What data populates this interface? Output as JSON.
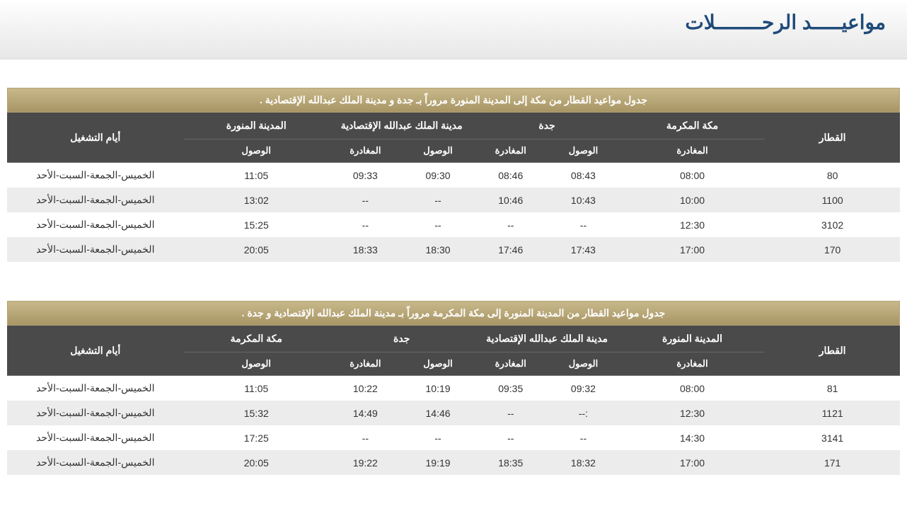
{
  "page": {
    "title": "مواعيـــــد الرحــــــــلات",
    "title_color": "#1f4b7a",
    "header_bg_gradient": [
      "#ffffff",
      "#e8e8e8"
    ]
  },
  "tables": [
    {
      "caption": "جدول مواعيد القطار من مكة إلى المدينة المنورة مروراً بـ جدة و مدينة الملك عبدالله الإقتصادية .",
      "caption_bg": [
        "#c9b98a",
        "#a89565"
      ],
      "header_bg": "#4a4a4a",
      "columns": {
        "train": "القطار",
        "station1": "مكة المكرمة",
        "station2": "جدة",
        "station3": "مدينة الملك عبدالله الإقتصادية",
        "station4": "المدينة المنورة",
        "days": "أيام التشغيل"
      },
      "subcolumns": {
        "depart": "المغادرة",
        "arrive": "الوصول"
      },
      "rows": [
        {
          "train": "80",
          "s1_dep": "08:00",
          "s2_arr": "08:43",
          "s2_dep": "08:46",
          "s3_arr": "09:30",
          "s3_dep": "09:33",
          "s4_arr": "11:05",
          "days": "الخميس-الجمعة-السبت-الأحد"
        },
        {
          "train": "1100",
          "s1_dep": "10:00",
          "s2_arr": "10:43",
          "s2_dep": "10:46",
          "s3_arr": "--",
          "s3_dep": "--",
          "s4_arr": "13:02",
          "days": "الخميس-الجمعة-السبت-الأحد"
        },
        {
          "train": "3102",
          "s1_dep": "12:30",
          "s2_arr": "--",
          "s2_dep": "--",
          "s3_arr": "--",
          "s3_dep": "--",
          "s4_arr": "15:25",
          "days": "الخميس-الجمعة-السبت-الأحد"
        },
        {
          "train": "170",
          "s1_dep": "17:00",
          "s2_arr": "17:43",
          "s2_dep": "17:46",
          "s3_arr": "18:30",
          "s3_dep": "18:33",
          "s4_arr": "20:05",
          "days": "الخميس-الجمعة-السبت-الأحد"
        }
      ]
    },
    {
      "caption": "جدول مواعيد القطار من المدينة المنورة إلى مكة المكرمة مروراً بـ مدينة الملك عبدالله الإقتصادية و جدة .",
      "caption_bg": [
        "#c9b98a",
        "#a89565"
      ],
      "header_bg": "#4a4a4a",
      "columns": {
        "train": "القطار",
        "station1": "المدينة المنورة",
        "station2": "مدينة الملك عبدالله الإقتصادية",
        "station3": "جدة",
        "station4": "مكة المكرمة",
        "days": "أيام التشغيل"
      },
      "subcolumns": {
        "depart": "المغادرة",
        "arrive": "الوصول"
      },
      "rows": [
        {
          "train": "81",
          "s1_dep": "08:00",
          "s2_arr": "09:32",
          "s2_dep": "09:35",
          "s3_arr": "10:19",
          "s3_dep": "10:22",
          "s4_arr": "11:05",
          "days": "الخميس-الجمعة-السبت-الأحد"
        },
        {
          "train": "1121",
          "s1_dep": "12:30",
          "s2_arr": ":--",
          "s2_dep": "--",
          "s3_arr": "14:46",
          "s3_dep": "14:49",
          "s4_arr": "15:32",
          "days": "الخميس-الجمعة-السبت-الأحد"
        },
        {
          "train": "3141",
          "s1_dep": "14:30",
          "s2_arr": "--",
          "s2_dep": "--",
          "s3_arr": "--",
          "s3_dep": "--",
          "s4_arr": "17:25",
          "days": "الخميس-الجمعة-السبت-الأحد"
        },
        {
          "train": "171",
          "s1_dep": "17:00",
          "s2_arr": "18:32",
          "s2_dep": "18:35",
          "s3_arr": "19:19",
          "s3_dep": "19:22",
          "s4_arr": "20:05",
          "days": "الخميس-الجمعة-السبت-الأحد"
        }
      ]
    }
  ],
  "styling": {
    "row_odd_bg": "#ffffff",
    "row_even_bg": "#ececec",
    "body_fontsize": 14,
    "header_fontsize": 14,
    "subheader_fontsize": 13,
    "text_color": "#333333",
    "header_text_color": "#ffffff"
  }
}
